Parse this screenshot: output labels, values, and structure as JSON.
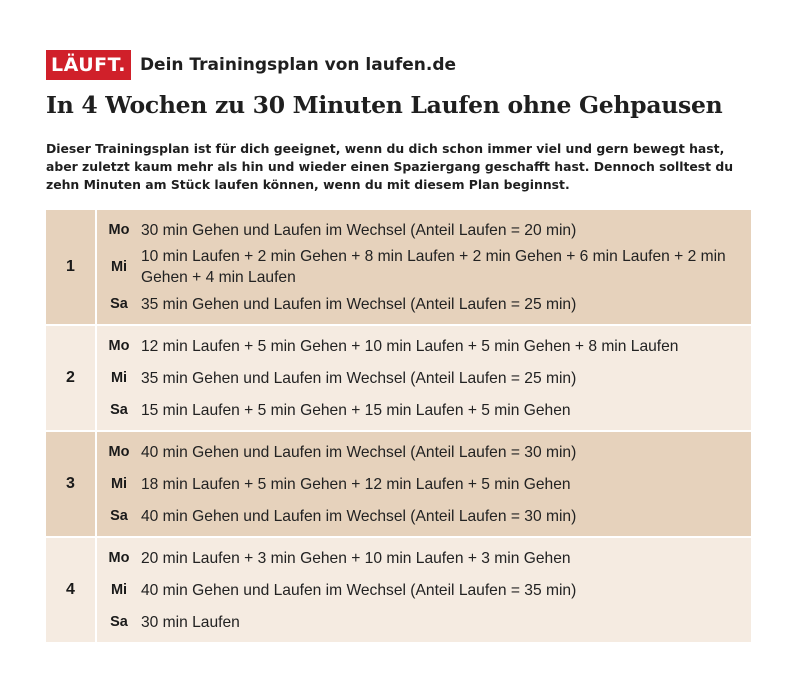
{
  "brand": {
    "logo": "LÄUFT.",
    "tagline": "Dein Trainingsplan von laufen.de",
    "logo_color": "#d0202a"
  },
  "headline": "In 4 Wochen zu 30 Minuten Laufen ohne Gehpausen",
  "intro": "Dieser Trainingsplan ist für dich geeignet, wenn du dich schon immer viel und gern bewegt hast, aber zuletzt kaum mehr als hin und wieder einen Spaziergang geschafft hast. Dennoch solltest du zehn Minuten am Stück laufen können, wenn du mit diesem Plan beginnst.",
  "colors": {
    "row_dark": "#e6d2bc",
    "row_light": "#f5ebe1"
  },
  "weeks": [
    {
      "number": "1",
      "days": [
        {
          "day": "Mo",
          "text": "30 min Gehen und Laufen im Wechsel (Anteil Laufen = 20 min)"
        },
        {
          "day": "Mi",
          "text": "10 min Laufen + 2 min Gehen + 8 min Laufen + 2 min Gehen + 6 min Laufen + 2 min Gehen + 4 min Laufen"
        },
        {
          "day": "Sa",
          "text": "35 min Gehen und Laufen im Wechsel (Anteil Laufen = 25 min)"
        }
      ]
    },
    {
      "number": "2",
      "days": [
        {
          "day": "Mo",
          "text": "12 min Laufen + 5 min Gehen + 10 min Laufen + 5 min Gehen + 8 min Laufen"
        },
        {
          "day": "Mi",
          "text": "35 min Gehen und Laufen im Wechsel (Anteil Laufen = 25 min)"
        },
        {
          "day": "Sa",
          "text": "15 min Laufen + 5 min Gehen + 15 min Laufen + 5 min Gehen"
        }
      ]
    },
    {
      "number": "3",
      "days": [
        {
          "day": "Mo",
          "text": "40 min Gehen und Laufen im Wechsel (Anteil Laufen = 30 min)"
        },
        {
          "day": "Mi",
          "text": "18 min Laufen + 5 min Gehen + 12 min Laufen + 5 min Gehen"
        },
        {
          "day": "Sa",
          "text": "40 min Gehen und Laufen im Wechsel (Anteil Laufen = 30 min)"
        }
      ]
    },
    {
      "number": "4",
      "days": [
        {
          "day": "Mo",
          "text": "20 min Laufen + 3 min Gehen + 10 min Laufen + 3 min Gehen"
        },
        {
          "day": "Mi",
          "text": "40 min Gehen und Laufen im Wechsel (Anteil Laufen = 35 min)"
        },
        {
          "day": "Sa",
          "text": "30 min Laufen"
        }
      ]
    }
  ]
}
